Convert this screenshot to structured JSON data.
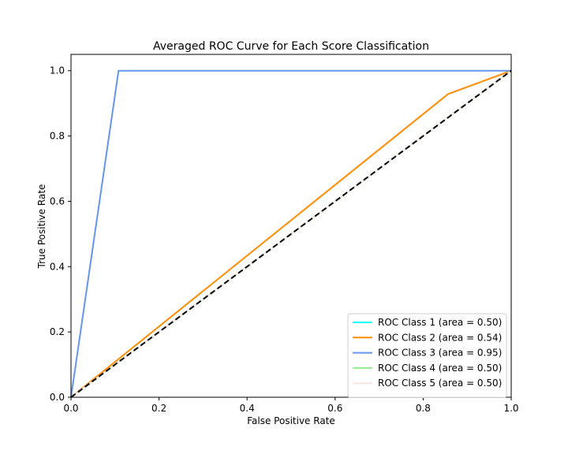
{
  "chart_data": {
    "type": "line",
    "title": "Averaged ROC Curve for Each Score Classification",
    "xlabel": "False Positive Rate",
    "ylabel": "True Positive Rate",
    "xlim": [
      0.0,
      1.0
    ],
    "ylim": [
      0.0,
      1.05
    ],
    "xticks": [
      "0.0",
      "0.2",
      "0.4",
      "0.6",
      "0.8",
      "1.0"
    ],
    "yticks": [
      "0.0",
      "0.2",
      "0.4",
      "0.6",
      "0.8",
      "1.0"
    ],
    "grid": false,
    "legend_position": "lower right",
    "series": [
      {
        "name": "ROC Class 1 (area = 0.50)",
        "color": "#00ffff",
        "x": [
          0.0,
          1.0
        ],
        "y": [
          0.0,
          1.0
        ]
      },
      {
        "name": "ROC Class 2 (area = 0.54)",
        "color": "#ff8c00",
        "x": [
          0.0,
          0.857,
          1.0
        ],
        "y": [
          0.0,
          0.929,
          1.0
        ]
      },
      {
        "name": "ROC Class 3 (area = 0.95)",
        "color": "#6495ed",
        "x": [
          0.0,
          0.108,
          1.0
        ],
        "y": [
          0.0,
          1.0,
          1.0
        ]
      },
      {
        "name": "ROC Class 4 (area = 0.50)",
        "color": "#90ee90",
        "x": [
          0.0,
          1.0
        ],
        "y": [
          0.0,
          1.0
        ]
      },
      {
        "name": "ROC Class 5 (area = 0.50)",
        "color": "#ffe4e1",
        "x": [
          0.0,
          1.0
        ],
        "y": [
          0.0,
          1.0
        ]
      }
    ],
    "reference_line": {
      "color": "#000000",
      "style": "dashed",
      "x": [
        0.0,
        1.0
      ],
      "y": [
        0.0,
        1.0
      ]
    }
  }
}
